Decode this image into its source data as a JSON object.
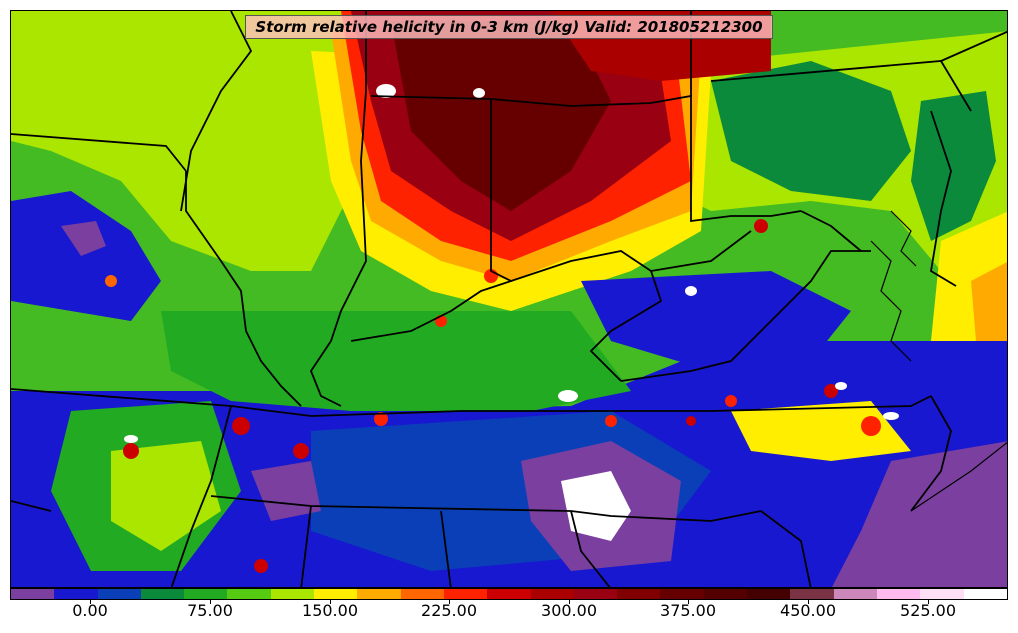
{
  "map": {
    "title": "Storm relative helicity in 0-3 km (J/kg) Valid: 201805212300",
    "base_color": "#44bb22"
  },
  "colorbar": {
    "colors": [
      "#7b3fa0",
      "#1818d0",
      "#0a3fb8",
      "#0a8a3a",
      "#22aa22",
      "#55cc11",
      "#aae600",
      "#ffee00",
      "#ffaa00",
      "#ff6600",
      "#ff2200",
      "#cc0000",
      "#aa0000",
      "#990011",
      "#800000",
      "#660000",
      "#550000",
      "#440000",
      "#7a3344",
      "#cc88bb",
      "#ffbbee",
      "#ffdff5",
      "#ffffff"
    ],
    "labels": [
      "0.00",
      "75.00",
      "150.00",
      "225.00",
      "300.00",
      "375.00",
      "450.00",
      "525.00"
    ]
  }
}
